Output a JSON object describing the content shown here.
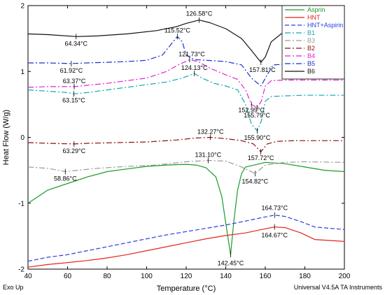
{
  "chart_data": {
    "type": "line",
    "xlabel": "Temperature (°C)",
    "ylabel": "Heat Flow (W/g)",
    "xlim": [
      40,
      200
    ],
    "ylim": [
      -2,
      2
    ],
    "x_ticks": [
      40,
      60,
      80,
      100,
      120,
      140,
      160,
      180,
      200
    ],
    "y_ticks": [
      -2,
      -1,
      0,
      1,
      2
    ],
    "footer_left": "Exo Up",
    "footer_right": "Universal V4.5A TA Instruments",
    "legend_position": "top-right",
    "series": [
      {
        "name": "Asprin",
        "color": "#1a9a2a",
        "dash": "solid",
        "points": [
          [
            40,
            -1.0
          ],
          [
            50,
            -0.8
          ],
          [
            60,
            -0.7
          ],
          [
            70,
            -0.6
          ],
          [
            80,
            -0.52
          ],
          [
            90,
            -0.48
          ],
          [
            100,
            -0.44
          ],
          [
            110,
            -0.42
          ],
          [
            120,
            -0.41
          ],
          [
            125,
            -0.42
          ],
          [
            130,
            -0.46
          ],
          [
            135,
            -0.6
          ],
          [
            138,
            -0.9
          ],
          [
            140,
            -1.3
          ],
          [
            142.45,
            -1.78
          ],
          [
            144,
            -1.3
          ],
          [
            146,
            -0.8
          ],
          [
            148,
            -0.55
          ],
          [
            150,
            -0.45
          ],
          [
            160,
            -0.38
          ],
          [
            170,
            -0.4
          ],
          [
            180,
            -0.45
          ],
          [
            190,
            -0.5
          ],
          [
            200,
            -0.52
          ]
        ]
      },
      {
        "name": "HNT",
        "color": "#e52420",
        "dash": "solid",
        "points": [
          [
            40,
            -1.97
          ],
          [
            50,
            -1.93
          ],
          [
            60,
            -1.9
          ],
          [
            70,
            -1.87
          ],
          [
            80,
            -1.83
          ],
          [
            90,
            -1.78
          ],
          [
            100,
            -1.72
          ],
          [
            110,
            -1.66
          ],
          [
            120,
            -1.6
          ],
          [
            130,
            -1.54
          ],
          [
            140,
            -1.49
          ],
          [
            150,
            -1.45
          ],
          [
            158,
            -1.4
          ],
          [
            164.67,
            -1.36
          ],
          [
            170,
            -1.37
          ],
          [
            178,
            -1.45
          ],
          [
            185,
            -1.55
          ],
          [
            200,
            -1.58
          ]
        ]
      },
      {
        "name": "HNT+Aspirin",
        "color": "#2a3fd8",
        "dash": "dashed",
        "points": [
          [
            40,
            -1.88
          ],
          [
            50,
            -1.82
          ],
          [
            60,
            -1.78
          ],
          [
            70,
            -1.72
          ],
          [
            80,
            -1.66
          ],
          [
            90,
            -1.6
          ],
          [
            100,
            -1.54
          ],
          [
            110,
            -1.48
          ],
          [
            120,
            -1.43
          ],
          [
            130,
            -1.38
          ],
          [
            140,
            -1.33
          ],
          [
            150,
            -1.27
          ],
          [
            158,
            -1.22
          ],
          [
            164.73,
            -1.18
          ],
          [
            170,
            -1.2
          ],
          [
            178,
            -1.28
          ],
          [
            185,
            -1.36
          ],
          [
            200,
            -1.4
          ]
        ]
      },
      {
        "name": "B1",
        "color": "#18a6b0",
        "dash": "dashdot",
        "points": [
          [
            40,
            0.72
          ],
          [
            50,
            0.7
          ],
          [
            60,
            0.68
          ],
          [
            63.15,
            0.66
          ],
          [
            70,
            0.68
          ],
          [
            80,
            0.72
          ],
          [
            90,
            0.76
          ],
          [
            100,
            0.8
          ],
          [
            110,
            0.84
          ],
          [
            118,
            0.9
          ],
          [
            124.13,
            0.97
          ],
          [
            128,
            0.9
          ],
          [
            134,
            0.82
          ],
          [
            140,
            0.78
          ],
          [
            146,
            0.72
          ],
          [
            150,
            0.5
          ],
          [
            153,
            0.2
          ],
          [
            155.9,
            0.1
          ],
          [
            158,
            0.25
          ],
          [
            160,
            0.55
          ],
          [
            163,
            0.62
          ],
          [
            170,
            0.63
          ],
          [
            180,
            0.64
          ],
          [
            200,
            0.64
          ]
        ]
      },
      {
        "name": "B3",
        "color": "#9a9a9a",
        "dash": "dashdot",
        "points": [
          [
            40,
            -0.45
          ],
          [
            50,
            -0.47
          ],
          [
            58.86,
            -0.52
          ],
          [
            65,
            -0.5
          ],
          [
            75,
            -0.47
          ],
          [
            90,
            -0.44
          ],
          [
            105,
            -0.42
          ],
          [
            120,
            -0.37
          ],
          [
            131.1,
            -0.35
          ],
          [
            140,
            -0.36
          ],
          [
            148,
            -0.45
          ],
          [
            154.82,
            -0.55
          ],
          [
            160,
            -0.42
          ],
          [
            170,
            -0.38
          ],
          [
            180,
            -0.37
          ],
          [
            200,
            -0.38
          ]
        ]
      },
      {
        "name": "B2",
        "color": "#8c1010",
        "dash": "dashdot",
        "points": [
          [
            40,
            -0.08
          ],
          [
            50,
            -0.09
          ],
          [
            63.29,
            -0.1
          ],
          [
            70,
            -0.09
          ],
          [
            85,
            -0.08
          ],
          [
            100,
            -0.07
          ],
          [
            115,
            -0.04
          ],
          [
            125,
            -0.01
          ],
          [
            132.27,
            0.0
          ],
          [
            140,
            -0.02
          ],
          [
            148,
            -0.05
          ],
          [
            154,
            -0.1
          ],
          [
            157.72,
            -0.22
          ],
          [
            161,
            -0.1
          ],
          [
            166,
            -0.06
          ],
          [
            175,
            -0.05
          ],
          [
            200,
            -0.05
          ]
        ]
      },
      {
        "name": "B4",
        "color": "#e020d8",
        "dash": "dashdot",
        "points": [
          [
            40,
            0.76
          ],
          [
            50,
            0.77
          ],
          [
            63.37,
            0.77
          ],
          [
            70,
            0.79
          ],
          [
            80,
            0.82
          ],
          [
            90,
            0.86
          ],
          [
            100,
            0.9
          ],
          [
            110,
            1.0
          ],
          [
            116,
            1.1
          ],
          [
            121.73,
            1.18
          ],
          [
            126,
            1.15
          ],
          [
            132,
            1.05
          ],
          [
            140,
            0.95
          ],
          [
            146,
            0.88
          ],
          [
            150,
            0.72
          ],
          [
            152.99,
            0.5
          ],
          [
            155.79,
            0.45
          ],
          [
            158,
            0.55
          ],
          [
            160,
            0.78
          ],
          [
            163,
            0.86
          ],
          [
            170,
            0.87
          ],
          [
            180,
            0.87
          ],
          [
            200,
            0.87
          ]
        ]
      },
      {
        "name": "B5",
        "color": "#1a2fd0",
        "dash": "dashdot",
        "points": [
          [
            40,
            1.13
          ],
          [
            50,
            1.13
          ],
          [
            61.92,
            1.12
          ],
          [
            70,
            1.13
          ],
          [
            80,
            1.14
          ],
          [
            90,
            1.15
          ],
          [
            100,
            1.17
          ],
          [
            108,
            1.25
          ],
          [
            112,
            1.4
          ],
          [
            115.52,
            1.53
          ],
          [
            118,
            1.45
          ],
          [
            120,
            1.25
          ],
          [
            124,
            1.18
          ],
          [
            130,
            1.17
          ],
          [
            140,
            1.15
          ],
          [
            148,
            1.1
          ],
          [
            153,
            0.9
          ],
          [
            157.81,
            0.78
          ],
          [
            161,
            0.95
          ],
          [
            164,
            1.1
          ],
          [
            170,
            1.11
          ],
          [
            180,
            1.11
          ],
          [
            200,
            1.12
          ]
        ]
      },
      {
        "name": "B6",
        "color": "#111111",
        "dash": "solid",
        "points": [
          [
            40,
            1.57
          ],
          [
            50,
            1.56
          ],
          [
            64.34,
            1.53
          ],
          [
            75,
            1.54
          ],
          [
            90,
            1.57
          ],
          [
            105,
            1.62
          ],
          [
            115,
            1.68
          ],
          [
            120,
            1.73
          ],
          [
            126.58,
            1.78
          ],
          [
            132,
            1.74
          ],
          [
            140,
            1.65
          ],
          [
            148,
            1.5
          ],
          [
            153,
            1.32
          ],
          [
            157.81,
            1.14
          ],
          [
            160,
            1.22
          ],
          [
            163,
            1.45
          ],
          [
            168,
            1.57
          ],
          [
            175,
            1.6
          ],
          [
            185,
            1.6
          ],
          [
            200,
            1.61
          ]
        ]
      }
    ],
    "annotations": [
      {
        "text": "126.58°C",
        "x": 126.58,
        "y": 1.78
      },
      {
        "text": "115.52°C",
        "x": 115.52,
        "y": 1.53
      },
      {
        "text": "64.34°C",
        "x": 64.34,
        "y": 1.53
      },
      {
        "text": "61.92°C",
        "x": 61.92,
        "y": 1.12
      },
      {
        "text": "157.81°C",
        "x": 157.81,
        "y": 1.14
      },
      {
        "text": "121.73°C",
        "x": 121.73,
        "y": 1.18
      },
      {
        "text": "63.37°C",
        "x": 63.37,
        "y": 0.77
      },
      {
        "text": "124.13°C",
        "x": 124.13,
        "y": 0.97
      },
      {
        "text": "63.15°C",
        "x": 63.15,
        "y": 0.66
      },
      {
        "text": "152.99°C",
        "x": 152.99,
        "y": 0.5
      },
      {
        "text": "155.79°C",
        "x": 155.79,
        "y": 0.45
      },
      {
        "text": "155.90°C",
        "x": 155.9,
        "y": 0.1
      },
      {
        "text": "132.27°C",
        "x": 132.27,
        "y": 0.0
      },
      {
        "text": "63.29°C",
        "x": 63.29,
        "y": -0.1
      },
      {
        "text": "157.72°C",
        "x": 157.72,
        "y": -0.22
      },
      {
        "text": "131.10°C",
        "x": 131.1,
        "y": -0.35
      },
      {
        "text": "58.86°C",
        "x": 58.86,
        "y": -0.52
      },
      {
        "text": "154.82°C",
        "x": 154.82,
        "y": -0.55
      },
      {
        "text": "142.45°C",
        "x": 142.45,
        "y": -1.78
      },
      {
        "text": "164.73°C",
        "x": 164.73,
        "y": -1.18
      },
      {
        "text": "164.67°C",
        "x": 164.67,
        "y": -1.36
      }
    ]
  }
}
